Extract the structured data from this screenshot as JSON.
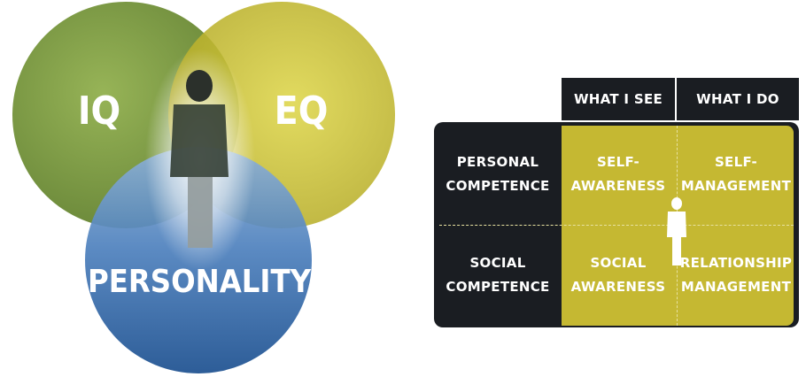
{
  "venn": {
    "labels": {
      "iq": "IQ",
      "eq": "EQ",
      "personality": "PERSONALITY"
    },
    "colors": {
      "iq": "#7a9a3a",
      "eq": "#c9c12e",
      "personality": "#2f63a6",
      "glow": "#ffffff",
      "figure": "#2a2f2a"
    },
    "icons": {
      "center_figure": "person-icon"
    }
  },
  "matrix": {
    "col_headers": [
      "WHAT I SEE",
      "WHAT I DO"
    ],
    "row_headers": [
      "PERSONAL\nCOMPETENCE",
      "SOCIAL\nCOMPETENCE"
    ],
    "cells": [
      [
        "SELF-\nAWARENESS",
        "SELF-\nMANAGEMENT"
      ],
      [
        "SOCIAL\nAWARENESS",
        "RELATIONSHIP\nMANAGEMENT"
      ]
    ],
    "colors": {
      "dark": "#1a1d22",
      "yellow": "#c5b832",
      "divider": "#e7e1a0"
    },
    "icons": {
      "center_figure": "person-icon"
    }
  }
}
